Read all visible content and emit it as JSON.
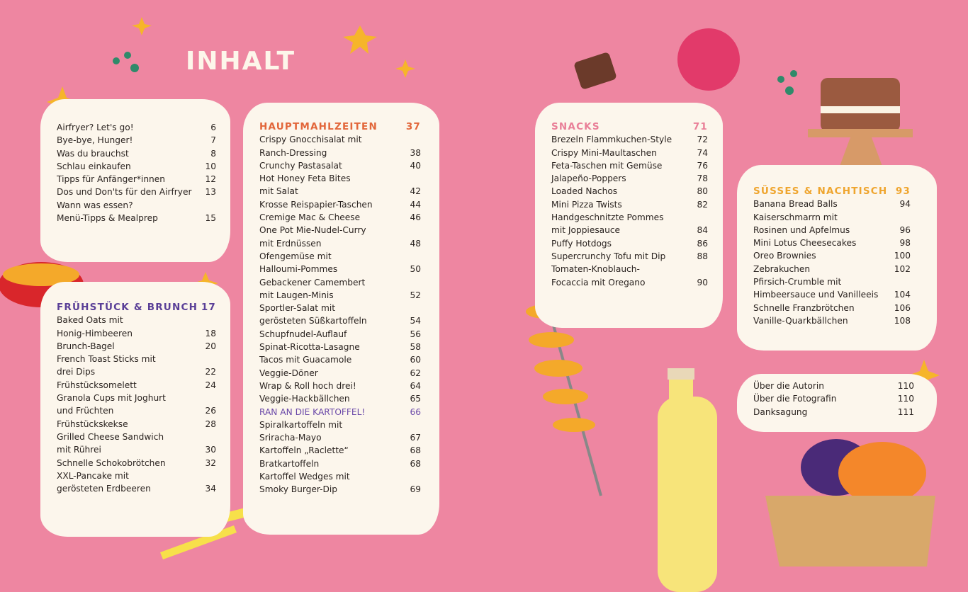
{
  "header": {
    "title": "INHALT"
  },
  "sections": [
    {
      "entries": [
        {
          "lines": [
            "Airfryer? Let's go!"
          ],
          "page": "6"
        },
        {
          "lines": [
            "Bye-bye, Hunger!"
          ],
          "page": "7"
        },
        {
          "lines": [
            "Was du brauchst"
          ],
          "page": "8"
        },
        {
          "lines": [
            "Schlau einkaufen"
          ],
          "page": "10"
        },
        {
          "lines": [
            "Tipps für Anfänger*innen"
          ],
          "page": "12"
        },
        {
          "lines": [
            "Dos und Don'ts für den Airfryer"
          ],
          "page": "13"
        },
        {
          "lines": [
            "Wann was essen?"
          ]
        },
        {
          "lines": [
            "Menü-Tipps & Mealprep"
          ],
          "page": "15"
        }
      ]
    },
    {
      "heading": "Frühstück & Brunch",
      "page": "17",
      "color": "#5a3f97",
      "entries": [
        {
          "lines": [
            "Baked Oats mit",
            "Honig-Himbeeren"
          ],
          "page": "18"
        },
        {
          "lines": [
            "Brunch-Bagel"
          ],
          "page": "20"
        },
        {
          "lines": [
            "French Toast Sticks mit",
            "drei Dips"
          ],
          "page": "22"
        },
        {
          "lines": [
            "Frühstücksomelett"
          ],
          "page": "24"
        },
        {
          "lines": [
            "Granola Cups mit Joghurt",
            "und Früchten"
          ],
          "page": "26"
        },
        {
          "lines": [
            "Frühstückskekse"
          ],
          "page": "28"
        },
        {
          "lines": [
            "Grilled Cheese Sandwich",
            "mit Rührei"
          ],
          "page": "30"
        },
        {
          "lines": [
            "Schnelle Schokobrötchen"
          ],
          "page": "32"
        },
        {
          "lines": [
            "XXL-Pancake mit",
            "gerösteten Erdbeeren"
          ],
          "page": "34"
        }
      ]
    },
    {
      "heading": "Hauptmahlzeiten",
      "page": "37",
      "color": "#e2663a",
      "entries": [
        {
          "lines": [
            "Crispy Gnocchisalat mit",
            "Ranch-Dressing"
          ],
          "page": "38"
        },
        {
          "lines": [
            "Crunchy Pastasalat"
          ],
          "page": "40"
        },
        {
          "lines": [
            "Hot Honey Feta Bites",
            "mit Salat"
          ],
          "page": "42"
        },
        {
          "lines": [
            "Krosse Reispapier-Taschen"
          ],
          "page": "44"
        },
        {
          "lines": [
            "Cremige Mac & Cheese"
          ],
          "page": "46"
        },
        {
          "lines": [
            "One Pot Mie-Nudel-Curry",
            "mit Erdnüssen"
          ],
          "page": "48"
        },
        {
          "lines": [
            "Ofengemüse mit",
            "Halloumi-Pommes"
          ],
          "page": "50"
        },
        {
          "lines": [
            "Gebackener Camembert",
            "mit Laugen-Minis"
          ],
          "page": "52"
        },
        {
          "lines": [
            "Sportler-Salat mit",
            "gerösteten Süßkartoffeln"
          ],
          "page": "54"
        },
        {
          "lines": [
            "Schupfnudel-Auflauf"
          ],
          "page": "56"
        },
        {
          "lines": [
            "Spinat-Ricotta-Lasagne"
          ],
          "page": "58"
        },
        {
          "lines": [
            "Tacos mit Guacamole"
          ],
          "page": "60"
        },
        {
          "lines": [
            "Veggie-Döner"
          ],
          "page": "62"
        },
        {
          "lines": [
            "Wrap & Roll hoch drei!"
          ],
          "page": "64"
        },
        {
          "lines": [
            "Veggie-Hackbällchen"
          ],
          "page": "65"
        },
        {
          "lines": [
            "RAN AN DIE KARTOFFEL!"
          ],
          "page": "66",
          "color": "#6a48a8"
        },
        {
          "lines": [
            "Spiralkartoffeln mit",
            "Sriracha-Mayo"
          ],
          "page": "67"
        },
        {
          "lines": [
            "Kartoffeln „Raclette“"
          ],
          "page": "68"
        },
        {
          "lines": [
            "Bratkartoffeln"
          ],
          "page": "68"
        },
        {
          "lines": [
            "Kartoffel Wedges mit",
            "Smoky Burger-Dip"
          ],
          "page": "69"
        }
      ]
    },
    {
      "heading": "Snacks",
      "page": "71",
      "color": "#e97f98",
      "entries": [
        {
          "lines": [
            "Brezeln Flammkuchen-Style"
          ],
          "page": "72"
        },
        {
          "lines": [
            "Crispy Mini-Maultaschen"
          ],
          "page": "74"
        },
        {
          "lines": [
            "Feta-Taschen mit Gemüse"
          ],
          "page": "76"
        },
        {
          "lines": [
            "Jalapeño-Poppers"
          ],
          "page": "78"
        },
        {
          "lines": [
            "Loaded Nachos"
          ],
          "page": "80"
        },
        {
          "lines": [
            "Mini Pizza Twists"
          ],
          "page": "82"
        },
        {
          "lines": [
            "Handgeschnitzte Pommes",
            "mit Joppiesauce"
          ],
          "page": "84"
        },
        {
          "lines": [
            "Puffy Hotdogs"
          ],
          "page": "86"
        },
        {
          "lines": [
            "Supercrunchy Tofu mit Dip"
          ],
          "page": "88"
        },
        {
          "lines": [
            "Tomaten-Knoblauch-",
            "Focaccia mit Oregano"
          ],
          "page": "90"
        }
      ]
    },
    {
      "heading": "Süsses & Nachtisch",
      "page": "93",
      "color": "#efa52e",
      "entries": [
        {
          "lines": [
            "Banana Bread Balls"
          ],
          "page": "94"
        },
        {
          "lines": [
            "Kaiserschmarrn mit",
            "Rosinen und Apfelmus"
          ],
          "page": "96"
        },
        {
          "lines": [
            "Mini Lotus Cheesecakes"
          ],
          "page": "98"
        },
        {
          "lines": [
            "Oreo Brownies"
          ],
          "page": "100"
        },
        {
          "lines": [
            "Zebrakuchen"
          ],
          "page": "102"
        },
        {
          "lines": [
            "Pfirsich-Crumble mit",
            "Himbeersauce und Vanilleeis"
          ],
          "page": "104"
        },
        {
          "lines": [
            "Schnelle Franzbrötchen"
          ],
          "page": "106"
        },
        {
          "lines": [
            "Vanille-Quarkbällchen"
          ],
          "page": "108"
        }
      ]
    },
    {
      "entries": [
        {
          "lines": [
            "Über die Autorin"
          ],
          "page": "110"
        },
        {
          "lines": [
            "Über die Fotografin"
          ],
          "page": "110"
        },
        {
          "lines": [
            "Danksagung"
          ],
          "page": "111"
        }
      ]
    }
  ]
}
